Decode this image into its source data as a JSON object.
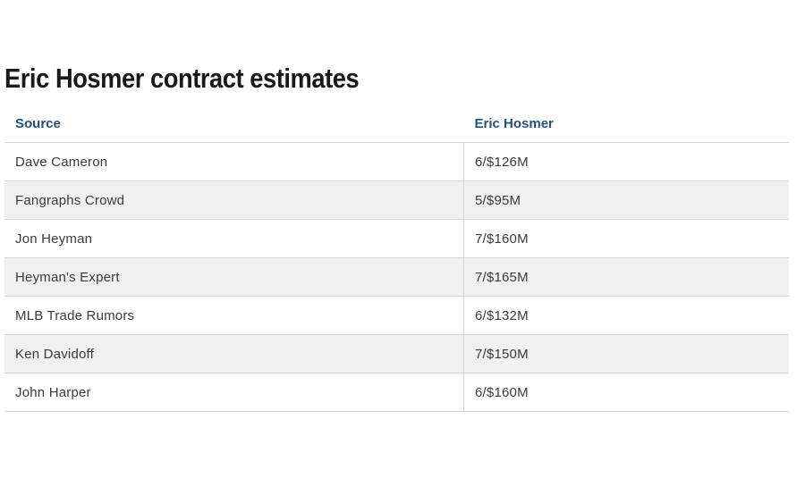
{
  "title": "Eric Hosmer contract estimates",
  "table": {
    "headers": [
      "Source",
      "Eric Hosmer"
    ],
    "rows": [
      {
        "source": "Dave Cameron",
        "estimate": "6/$126M"
      },
      {
        "source": "Fangraphs Crowd",
        "estimate": "5/$95M"
      },
      {
        "source": "Jon Heyman",
        "estimate": "7/$160M"
      },
      {
        "source": "Heyman's Expert",
        "estimate": "7/$165M"
      },
      {
        "source": "MLB Trade Rumors",
        "estimate": "6/$132M"
      },
      {
        "source": "Ken Davidoff",
        "estimate": "7/$150M"
      },
      {
        "source": "John Harper",
        "estimate": "6/$160M"
      }
    ]
  },
  "colors": {
    "header_text": "#24507a",
    "stripe_row": "#f0f0f0",
    "divider": "#d6d6d6"
  }
}
